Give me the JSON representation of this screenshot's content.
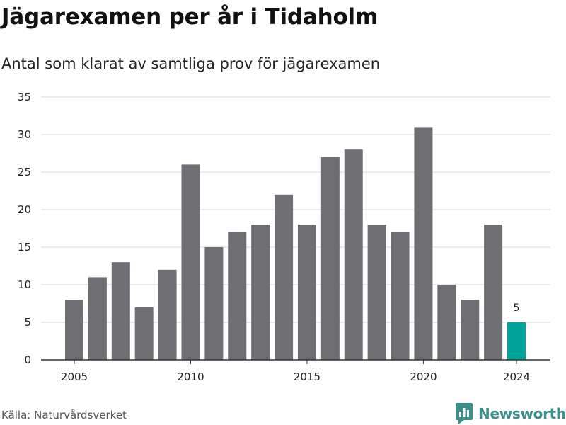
{
  "chart_data": {
    "type": "bar",
    "title": "Jägarexamen per år i Tidaholm",
    "subtitle": "Antal som klarat av samtliga prov för jägarexamen",
    "x": [
      2005,
      2006,
      2007,
      2008,
      2009,
      2010,
      2011,
      2012,
      2013,
      2014,
      2015,
      2016,
      2017,
      2018,
      2019,
      2020,
      2021,
      2022,
      2023,
      2024
    ],
    "values": [
      8,
      11,
      13,
      7,
      12,
      26,
      15,
      17,
      18,
      22,
      18,
      27,
      28,
      18,
      17,
      31,
      10,
      8,
      18,
      5
    ],
    "x_tick_labels": [
      "2005",
      "2010",
      "2015",
      "2020",
      "2024"
    ],
    "y_ticks": [
      0,
      5,
      10,
      15,
      20,
      25,
      30,
      35
    ],
    "ylim": [
      0,
      35
    ],
    "xlabel": "",
    "ylabel": "",
    "grid": true,
    "highlight": {
      "year": 2024,
      "label": "5"
    },
    "colors": {
      "bar": "#6e6e73",
      "highlight": "#00a39a",
      "grid": "#d9d9d9",
      "axis": "#333333"
    }
  },
  "footer": {
    "source": "Källa: Naturvårdsverket",
    "brand": "Newsworthy",
    "brand_icon": "bar-chart-logo-icon",
    "brand_color": "#3d8f8c"
  }
}
